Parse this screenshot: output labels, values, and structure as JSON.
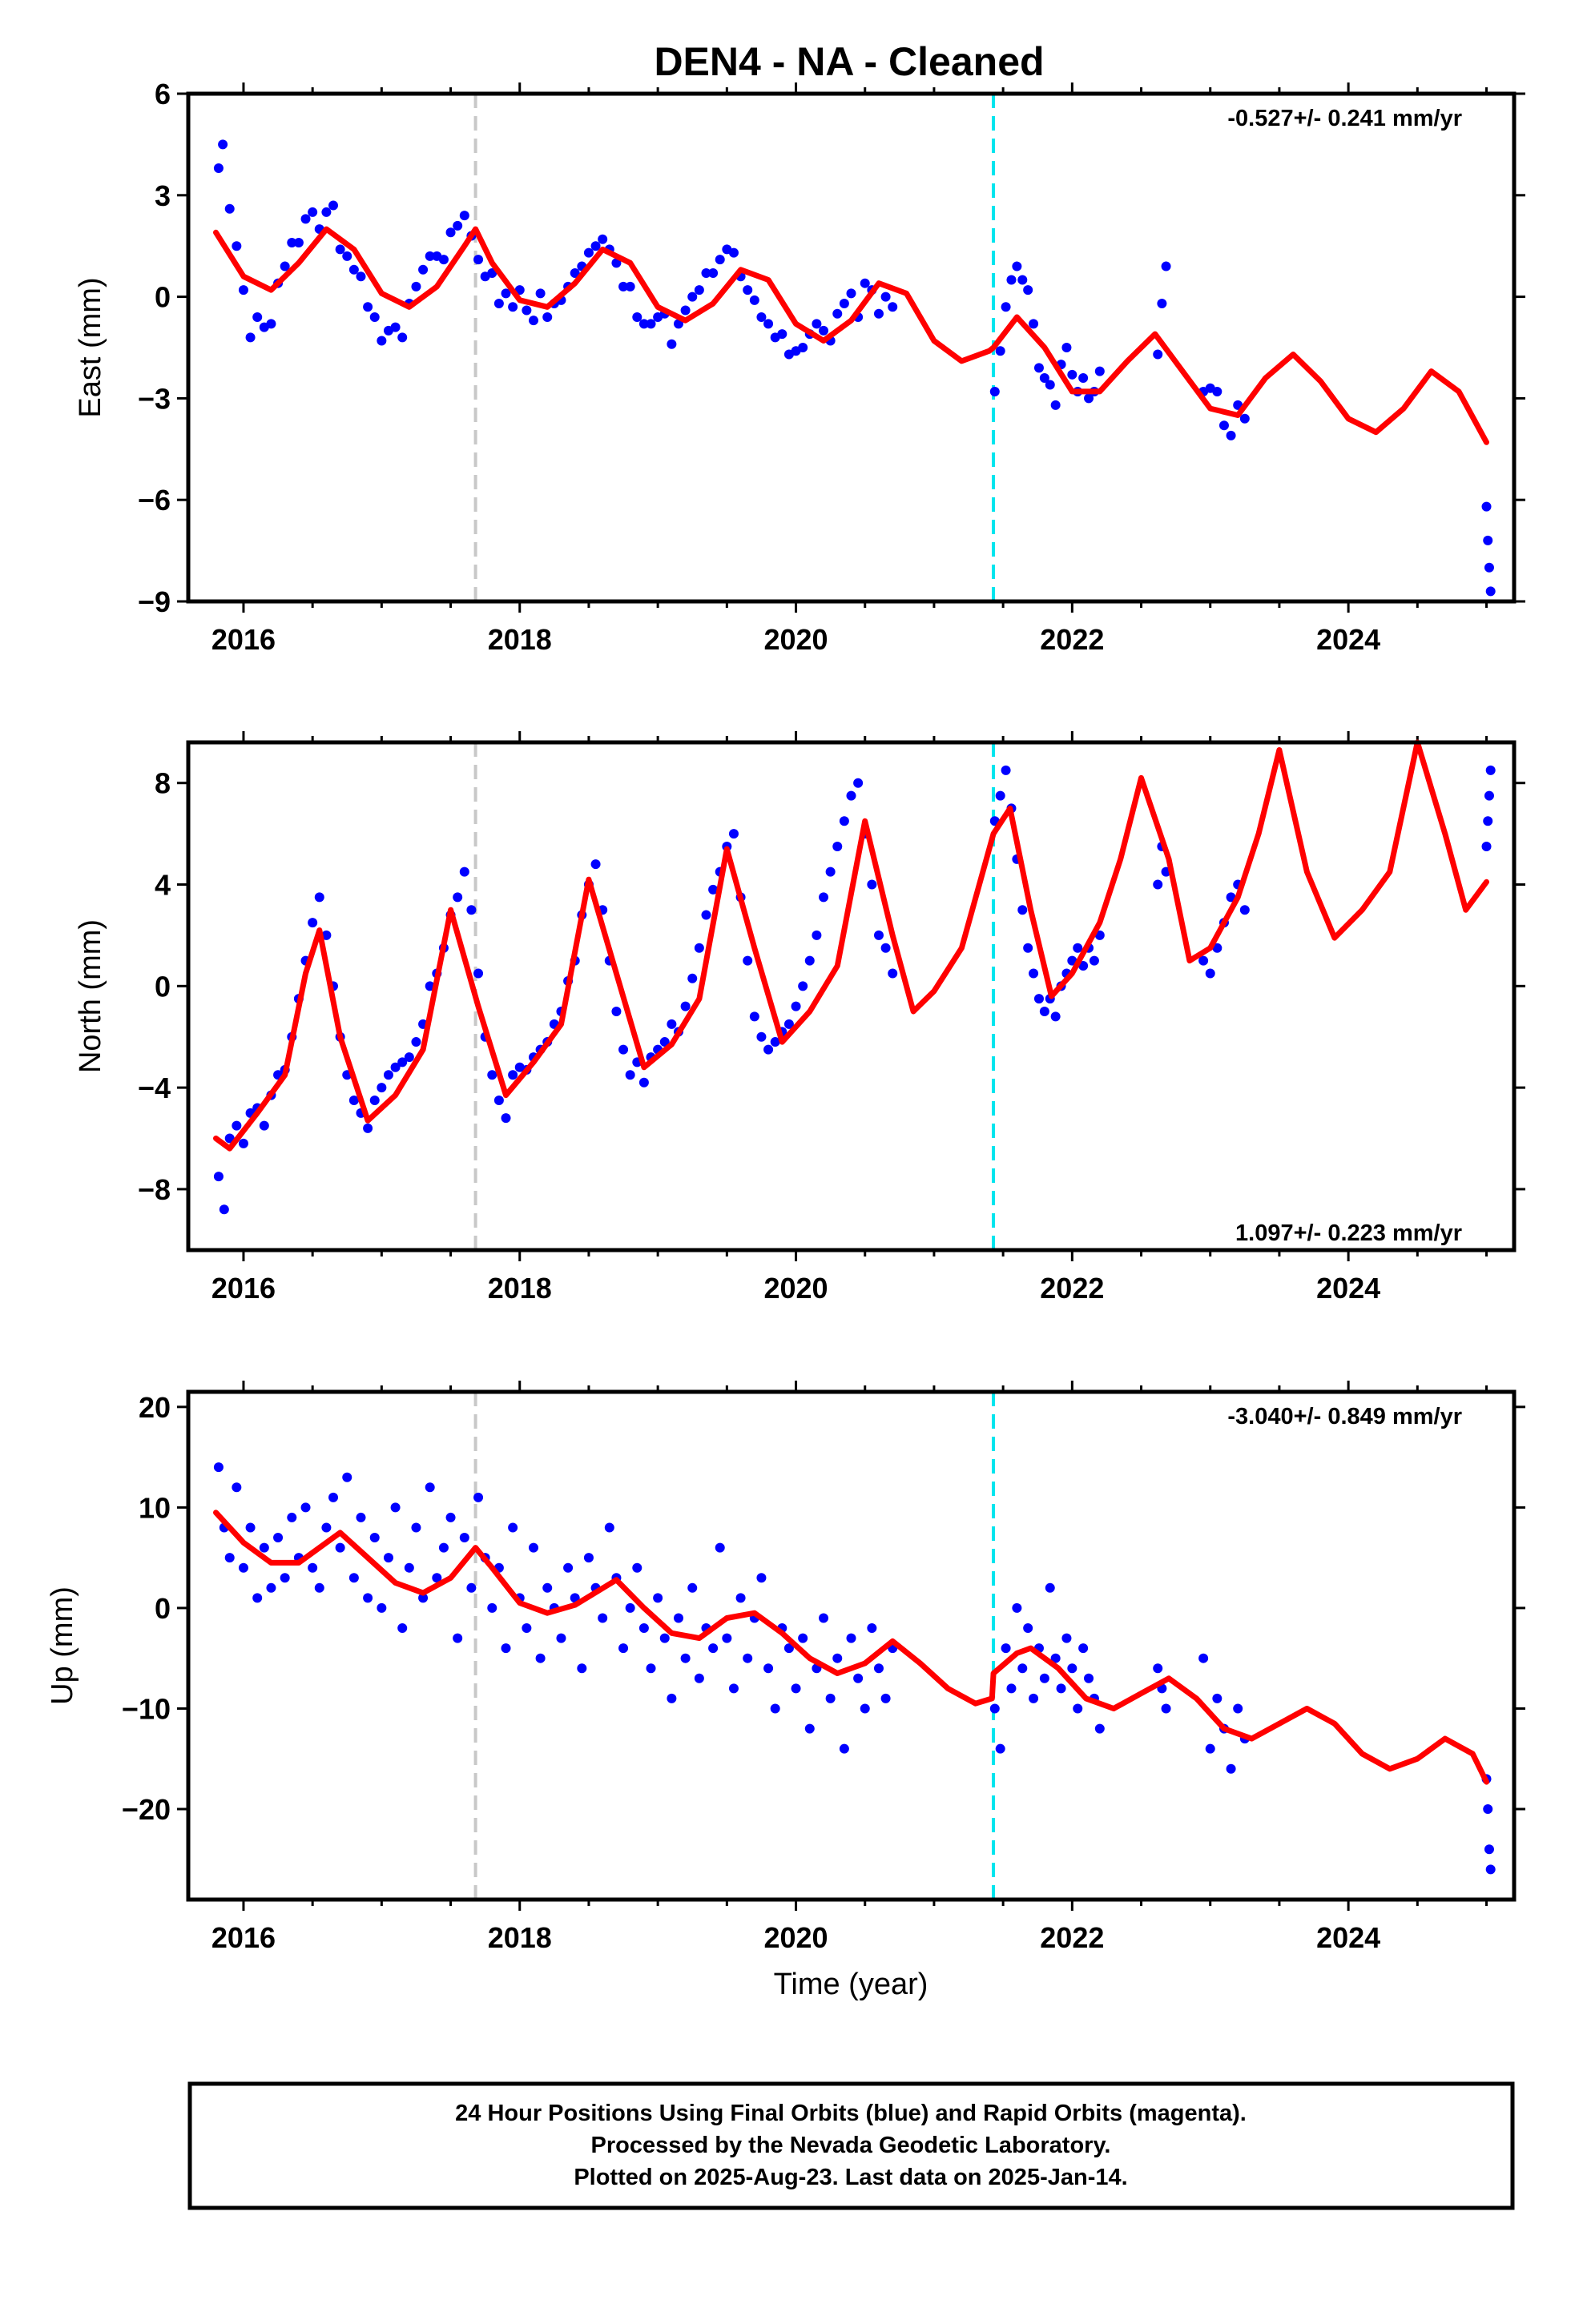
{
  "title": "DEN4  - NA - Cleaned",
  "xlabel": "Time (year)",
  "footer": {
    "lines": [
      "24 Hour Positions Using Final Orbits (blue) and Rapid Orbits (magenta).",
      "Processed by the Nevada Geodetic Laboratory.",
      "Plotted on 2025-Aug-23. Last data on 2025-Jan-14."
    ]
  },
  "colors": {
    "points": "#0000ff",
    "model": "#ff0000",
    "antenna_change": "#c8c8c8",
    "equipment_change": "#00e5ee"
  },
  "chart_data": [
    {
      "type": "scatter",
      "id": "east",
      "ylabel": "East (mm)",
      "rate_text": "-0.527+/- 0.241 mm/yr",
      "rate_position": "top-right",
      "xlim": [
        2015.6,
        2025.2
      ],
      "ylim": [
        -9,
        6
      ],
      "xticks": [
        2016,
        2018,
        2020,
        2022,
        2024
      ],
      "yticks": [
        -9,
        -6,
        -3,
        0,
        3,
        6
      ],
      "ytick_labels": [
        "−9",
        "−6",
        "−3",
        "0",
        "3",
        "6"
      ],
      "vertical_lines": [
        {
          "x": 2017.68,
          "color": "#c8c8c8"
        },
        {
          "x": 2021.43,
          "color": "#00e5ee"
        }
      ],
      "model_x": [
        2015.8,
        2016.0,
        2016.2,
        2016.4,
        2016.6,
        2016.8,
        2017.0,
        2017.2,
        2017.4,
        2017.6,
        2017.68,
        2017.8,
        2018.0,
        2018.2,
        2018.4,
        2018.6,
        2018.8,
        2019.0,
        2019.2,
        2019.4,
        2019.6,
        2019.8,
        2020.0,
        2020.2,
        2020.4,
        2020.6,
        2020.8,
        2021.0,
        2021.2,
        2021.4,
        2021.43,
        2021.6,
        2021.8,
        2022.0,
        2022.2,
        2022.4,
        2022.6,
        2022.8,
        2023.0,
        2023.2,
        2023.4,
        2023.6,
        2023.8,
        2024.0,
        2024.2,
        2024.4,
        2024.6,
        2024.8,
        2025.0
      ],
      "model_y": [
        1.9,
        0.6,
        0.2,
        1.0,
        2.0,
        1.4,
        0.1,
        -0.3,
        0.3,
        1.5,
        2.0,
        1.0,
        -0.1,
        -0.3,
        0.4,
        1.4,
        1.0,
        -0.3,
        -0.7,
        -0.2,
        0.8,
        0.5,
        -0.8,
        -1.3,
        -0.7,
        0.4,
        0.1,
        -1.3,
        -1.9,
        -1.6,
        -1.5,
        -0.6,
        -1.5,
        -2.8,
        -2.8,
        -1.9,
        -1.1,
        -2.2,
        -3.3,
        -3.5,
        -2.4,
        -1.7,
        -2.5,
        -3.6,
        -4.0,
        -3.3,
        -2.2,
        -2.8,
        -4.3
      ],
      "data_x": [
        2015.82,
        2015.85,
        2015.9,
        2015.95,
        2016.0,
        2016.05,
        2016.1,
        2016.15,
        2016.2,
        2016.25,
        2016.3,
        2016.35,
        2016.4,
        2016.45,
        2016.5,
        2016.55,
        2016.6,
        2016.65,
        2016.7,
        2016.75,
        2016.8,
        2016.85,
        2016.9,
        2016.95,
        2017.0,
        2017.05,
        2017.1,
        2017.15,
        2017.2,
        2017.25,
        2017.3,
        2017.35,
        2017.4,
        2017.45,
        2017.5,
        2017.55,
        2017.6,
        2017.65,
        2017.7,
        2017.75,
        2017.8,
        2017.85,
        2017.9,
        2017.95,
        2018.0,
        2018.05,
        2018.1,
        2018.15,
        2018.2,
        2018.25,
        2018.3,
        2018.35,
        2018.4,
        2018.45,
        2018.5,
        2018.55,
        2018.6,
        2018.65,
        2018.7,
        2018.75,
        2018.8,
        2018.85,
        2018.9,
        2018.95,
        2019.0,
        2019.05,
        2019.1,
        2019.15,
        2019.2,
        2019.25,
        2019.3,
        2019.35,
        2019.4,
        2019.45,
        2019.5,
        2019.55,
        2019.6,
        2019.65,
        2019.7,
        2019.75,
        2019.8,
        2019.85,
        2019.9,
        2019.95,
        2020.0,
        2020.05,
        2020.1,
        2020.15,
        2020.2,
        2020.25,
        2020.3,
        2020.35,
        2020.4,
        2020.45,
        2020.5,
        2020.55,
        2020.6,
        2020.65,
        2020.7,
        2021.44,
        2021.48,
        2021.52,
        2021.56,
        2021.6,
        2021.64,
        2021.68,
        2021.72,
        2021.76,
        2021.8,
        2021.84,
        2021.88,
        2021.92,
        2021.96,
        2022.0,
        2022.04,
        2022.08,
        2022.12,
        2022.16,
        2022.2,
        2022.62,
        2022.65,
        2022.68,
        2022.95,
        2023.0,
        2023.05,
        2023.1,
        2023.15,
        2023.2,
        2023.25,
        2025.0,
        2025.01,
        2025.02,
        2025.03
      ],
      "data_y": [
        3.8,
        4.5,
        2.6,
        1.5,
        0.2,
        -1.2,
        -0.6,
        -0.9,
        -0.8,
        0.4,
        0.9,
        1.6,
        1.6,
        2.3,
        2.5,
        2.0,
        2.5,
        2.7,
        1.4,
        1.2,
        0.8,
        0.6,
        -0.3,
        -0.6,
        -1.3,
        -1.0,
        -0.9,
        -1.2,
        -0.2,
        0.3,
        0.8,
        1.2,
        1.2,
        1.1,
        1.9,
        2.1,
        2.4,
        1.8,
        1.1,
        0.6,
        0.7,
        -0.2,
        0.1,
        -0.3,
        0.2,
        -0.4,
        -0.7,
        0.1,
        -0.6,
        -0.2,
        -0.1,
        0.3,
        0.7,
        0.9,
        1.3,
        1.5,
        1.7,
        1.4,
        1.0,
        0.3,
        0.3,
        -0.6,
        -0.8,
        -0.8,
        -0.6,
        -0.5,
        -1.4,
        -0.8,
        -0.4,
        0.0,
        0.2,
        0.7,
        0.7,
        1.1,
        1.4,
        1.3,
        0.6,
        0.2,
        -0.1,
        -0.6,
        -0.8,
        -1.2,
        -1.1,
        -1.7,
        -1.6,
        -1.5,
        -1.1,
        -0.8,
        -1.0,
        -1.3,
        -0.5,
        -0.2,
        0.1,
        -0.6,
        0.4,
        0.2,
        -0.5,
        0.0,
        -0.3,
        -2.8,
        -1.6,
        -0.3,
        0.5,
        0.9,
        0.5,
        0.2,
        -0.8,
        -2.1,
        -2.4,
        -2.6,
        -3.2,
        -2.0,
        -1.5,
        -2.3,
        -2.8,
        -2.4,
        -3.0,
        -2.8,
        -2.2,
        -1.7,
        -0.2,
        0.9,
        -2.8,
        -2.7,
        -2.8,
        -3.8,
        -4.1,
        -3.2,
        -3.6,
        -6.2,
        -7.2,
        -8.0,
        -8.7
      ]
    },
    {
      "type": "scatter",
      "id": "north",
      "ylabel": "North (mm)",
      "rate_text": "1.097+/- 0.223 mm/yr",
      "rate_position": "bottom-right",
      "xlim": [
        2015.6,
        2025.2
      ],
      "ylim": [
        -10.4,
        9.6
      ],
      "xticks": [
        2016,
        2018,
        2020,
        2022,
        2024
      ],
      "yticks": [
        -8,
        -4,
        0,
        4,
        8
      ],
      "ytick_labels": [
        "−8",
        "−4",
        "0",
        "4",
        "8"
      ],
      "vertical_lines": [
        {
          "x": 2017.68,
          "color": "#c8c8c8"
        },
        {
          "x": 2021.43,
          "color": "#00e5ee"
        }
      ],
      "model_x": [
        2015.8,
        2015.9,
        2016.1,
        2016.3,
        2016.45,
        2016.55,
        2016.7,
        2016.9,
        2017.1,
        2017.3,
        2017.5,
        2017.7,
        2017.9,
        2018.1,
        2018.3,
        2018.5,
        2018.7,
        2018.9,
        2019.1,
        2019.3,
        2019.5,
        2019.7,
        2019.9,
        2020.1,
        2020.3,
        2020.5,
        2020.7,
        2020.85,
        2021.0,
        2021.2,
        2021.43,
        2021.55,
        2021.7,
        2021.85,
        2022.0,
        2022.2,
        2022.35,
        2022.5,
        2022.7,
        2022.85,
        2023.0,
        2023.2,
        2023.35,
        2023.5,
        2023.7,
        2023.9,
        2024.1,
        2024.3,
        2024.5,
        2024.7,
        2024.85,
        2025.0
      ],
      "model_y": [
        -6.0,
        -6.4,
        -5.0,
        -3.5,
        0.5,
        2.2,
        -2.0,
        -5.3,
        -4.3,
        -2.5,
        3.0,
        -0.8,
        -4.3,
        -3.0,
        -1.5,
        4.2,
        0.5,
        -3.2,
        -2.3,
        -0.5,
        5.4,
        1.5,
        -2.2,
        -1.0,
        0.8,
        6.5,
        2.0,
        -1.0,
        -0.2,
        1.5,
        6.0,
        7.0,
        3.0,
        -0.4,
        0.5,
        2.5,
        5.0,
        8.2,
        5.0,
        1.0,
        1.5,
        3.5,
        6.0,
        9.3,
        4.5,
        1.9,
        3.0,
        4.5,
        9.6,
        6.0,
        3.0,
        4.1
      ],
      "data_x": [
        2015.82,
        2015.86,
        2015.9,
        2015.95,
        2016.0,
        2016.05,
        2016.1,
        2016.15,
        2016.2,
        2016.25,
        2016.3,
        2016.35,
        2016.4,
        2016.45,
        2016.5,
        2016.55,
        2016.6,
        2016.65,
        2016.7,
        2016.75,
        2016.8,
        2016.85,
        2016.9,
        2016.95,
        2017.0,
        2017.05,
        2017.1,
        2017.15,
        2017.2,
        2017.25,
        2017.3,
        2017.35,
        2017.4,
        2017.45,
        2017.5,
        2017.55,
        2017.6,
        2017.65,
        2017.7,
        2017.75,
        2017.8,
        2017.85,
        2017.9,
        2017.95,
        2018.0,
        2018.05,
        2018.1,
        2018.15,
        2018.2,
        2018.25,
        2018.3,
        2018.35,
        2018.4,
        2018.45,
        2018.5,
        2018.55,
        2018.6,
        2018.65,
        2018.7,
        2018.75,
        2018.8,
        2018.85,
        2018.9,
        2018.95,
        2019.0,
        2019.05,
        2019.1,
        2019.15,
        2019.2,
        2019.25,
        2019.3,
        2019.35,
        2019.4,
        2019.45,
        2019.5,
        2019.55,
        2019.6,
        2019.65,
        2019.7,
        2019.75,
        2019.8,
        2019.85,
        2019.9,
        2019.95,
        2020.0,
        2020.05,
        2020.1,
        2020.15,
        2020.2,
        2020.25,
        2020.3,
        2020.35,
        2020.4,
        2020.45,
        2020.5,
        2020.55,
        2020.6,
        2020.65,
        2020.7,
        2021.44,
        2021.48,
        2021.52,
        2021.56,
        2021.6,
        2021.64,
        2021.68,
        2021.72,
        2021.76,
        2021.8,
        2021.84,
        2021.88,
        2021.92,
        2021.96,
        2022.0,
        2022.04,
        2022.08,
        2022.12,
        2022.16,
        2022.2,
        2022.62,
        2022.65,
        2022.68,
        2022.95,
        2023.0,
        2023.05,
        2023.1,
        2023.15,
        2023.2,
        2023.25,
        2025.0,
        2025.01,
        2025.02,
        2025.03
      ],
      "data_y": [
        -7.5,
        -8.8,
        -6.0,
        -5.5,
        -6.2,
        -5.0,
        -4.8,
        -5.5,
        -4.3,
        -3.5,
        -3.3,
        -2.0,
        -0.5,
        1.0,
        2.5,
        3.5,
        2.0,
        0.0,
        -2.0,
        -3.5,
        -4.5,
        -5.0,
        -5.6,
        -4.5,
        -4.0,
        -3.5,
        -3.2,
        -3.0,
        -2.8,
        -2.2,
        -1.5,
        0.0,
        0.5,
        1.5,
        2.8,
        3.5,
        4.5,
        3.0,
        0.5,
        -2.0,
        -3.5,
        -4.5,
        -5.2,
        -3.5,
        -3.2,
        -3.3,
        -2.8,
        -2.5,
        -2.2,
        -1.5,
        -1.0,
        0.2,
        1.0,
        2.8,
        4.0,
        4.8,
        3.0,
        1.0,
        -1.0,
        -2.5,
        -3.5,
        -3.0,
        -3.8,
        -2.8,
        -2.5,
        -2.2,
        -1.5,
        -1.8,
        -0.8,
        0.3,
        1.5,
        2.8,
        3.8,
        4.5,
        5.5,
        6.0,
        3.5,
        1.0,
        -1.2,
        -2.0,
        -2.5,
        -2.2,
        -1.8,
        -1.5,
        -0.8,
        0.0,
        1.0,
        2.0,
        3.5,
        4.5,
        5.5,
        6.5,
        7.5,
        8.0,
        6.0,
        4.0,
        2.0,
        1.5,
        0.5,
        6.5,
        7.5,
        8.5,
        7.0,
        5.0,
        3.0,
        1.5,
        0.5,
        -0.5,
        -1.0,
        -0.5,
        -1.2,
        0.0,
        0.5,
        1.0,
        1.5,
        0.8,
        1.5,
        1.0,
        2.0,
        4.0,
        5.5,
        4.5,
        1.0,
        0.5,
        1.5,
        2.5,
        3.5,
        4.0,
        3.0,
        5.5,
        6.5,
        7.5,
        8.5
      ]
    },
    {
      "type": "scatter",
      "id": "up",
      "ylabel": "Up (mm)",
      "rate_text": "-3.040+/- 0.849 mm/yr",
      "rate_position": "top-right",
      "xlim": [
        2015.6,
        2025.2
      ],
      "ylim": [
        -29,
        21.5
      ],
      "xticks": [
        2016,
        2018,
        2020,
        2022,
        2024
      ],
      "yticks": [
        -20,
        -10,
        0,
        10,
        20
      ],
      "ytick_labels": [
        "−20",
        "−10",
        "0",
        "10",
        "20"
      ],
      "vertical_lines": [
        {
          "x": 2017.68,
          "color": "#c8c8c8"
        },
        {
          "x": 2021.43,
          "color": "#00e5ee"
        }
      ],
      "model_x": [
        2015.8,
        2016.0,
        2016.2,
        2016.4,
        2016.7,
        2016.9,
        2017.1,
        2017.3,
        2017.5,
        2017.68,
        2017.8,
        2018.0,
        2018.2,
        2018.4,
        2018.7,
        2018.9,
        2019.1,
        2019.3,
        2019.5,
        2019.7,
        2019.9,
        2020.1,
        2020.3,
        2020.5,
        2020.7,
        2020.9,
        2021.1,
        2021.3,
        2021.42,
        2021.43,
        2021.6,
        2021.7,
        2021.9,
        2022.1,
        2022.3,
        2022.5,
        2022.7,
        2022.9,
        2023.1,
        2023.3,
        2023.5,
        2023.7,
        2023.9,
        2024.1,
        2024.3,
        2024.5,
        2024.7,
        2024.9,
        2025.0
      ],
      "model_y": [
        9.5,
        6.5,
        4.5,
        4.5,
        7.5,
        5.0,
        2.5,
        1.5,
        3.0,
        6.0,
        4.0,
        0.5,
        -0.5,
        0.3,
        2.8,
        0.0,
        -2.5,
        -3.0,
        -1.0,
        -0.5,
        -2.5,
        -5.0,
        -6.5,
        -5.5,
        -3.3,
        -5.5,
        -8.0,
        -9.5,
        -9.0,
        -6.5,
        -4.5,
        -4.0,
        -6.0,
        -9.0,
        -10.0,
        -8.5,
        -7.0,
        -9.0,
        -12.0,
        -13.0,
        -11.5,
        -10.0,
        -11.5,
        -14.5,
        -16.0,
        -15.0,
        -13.0,
        -14.5,
        -17.3
      ],
      "data_x": [
        2015.82,
        2015.86,
        2015.9,
        2015.95,
        2016.0,
        2016.05,
        2016.1,
        2016.15,
        2016.2,
        2016.25,
        2016.3,
        2016.35,
        2016.4,
        2016.45,
        2016.5,
        2016.55,
        2016.6,
        2016.65,
        2016.7,
        2016.75,
        2016.8,
        2016.85,
        2016.9,
        2016.95,
        2017.0,
        2017.05,
        2017.1,
        2017.15,
        2017.2,
        2017.25,
        2017.3,
        2017.35,
        2017.4,
        2017.45,
        2017.5,
        2017.55,
        2017.6,
        2017.65,
        2017.7,
        2017.75,
        2017.8,
        2017.85,
        2017.9,
        2017.95,
        2018.0,
        2018.05,
        2018.1,
        2018.15,
        2018.2,
        2018.25,
        2018.3,
        2018.35,
        2018.4,
        2018.45,
        2018.5,
        2018.55,
        2018.6,
        2018.65,
        2018.7,
        2018.75,
        2018.8,
        2018.85,
        2018.9,
        2018.95,
        2019.0,
        2019.05,
        2019.1,
        2019.15,
        2019.2,
        2019.25,
        2019.3,
        2019.35,
        2019.4,
        2019.45,
        2019.5,
        2019.55,
        2019.6,
        2019.65,
        2019.7,
        2019.75,
        2019.8,
        2019.85,
        2019.9,
        2019.95,
        2020.0,
        2020.05,
        2020.1,
        2020.15,
        2020.2,
        2020.25,
        2020.3,
        2020.35,
        2020.4,
        2020.45,
        2020.5,
        2020.55,
        2020.6,
        2020.65,
        2020.7,
        2021.44,
        2021.48,
        2021.52,
        2021.56,
        2021.6,
        2021.64,
        2021.68,
        2021.72,
        2021.76,
        2021.8,
        2021.84,
        2021.88,
        2021.92,
        2021.96,
        2022.0,
        2022.04,
        2022.08,
        2022.12,
        2022.16,
        2022.2,
        2022.62,
        2022.65,
        2022.68,
        2022.95,
        2023.0,
        2023.05,
        2023.1,
        2023.15,
        2023.2,
        2023.25,
        2025.0,
        2025.01,
        2025.02,
        2025.03
      ],
      "data_y": [
        14.0,
        8.0,
        5.0,
        12.0,
        4.0,
        8.0,
        1.0,
        6.0,
        2.0,
        7.0,
        3.0,
        9.0,
        5.0,
        10.0,
        4.0,
        2.0,
        8.0,
        11.0,
        6.0,
        13.0,
        3.0,
        9.0,
        1.0,
        7.0,
        0.0,
        5.0,
        10.0,
        -2.0,
        4.0,
        8.0,
        1.0,
        12.0,
        3.0,
        6.0,
        9.0,
        -3.0,
        7.0,
        2.0,
        11.0,
        5.0,
        0.0,
        4.0,
        -4.0,
        8.0,
        1.0,
        -2.0,
        6.0,
        -5.0,
        2.0,
        0.0,
        -3.0,
        4.0,
        1.0,
        -6.0,
        5.0,
        2.0,
        -1.0,
        8.0,
        3.0,
        -4.0,
        0.0,
        4.0,
        -2.0,
        -6.0,
        1.0,
        -3.0,
        -9.0,
        -1.0,
        -5.0,
        2.0,
        -7.0,
        -2.0,
        -4.0,
        6.0,
        -3.0,
        -8.0,
        1.0,
        -5.0,
        -1.0,
        3.0,
        -6.0,
        -10.0,
        -2.0,
        -4.0,
        -8.0,
        -3.0,
        -12.0,
        -6.0,
        -1.0,
        -9.0,
        -5.0,
        -14.0,
        -3.0,
        -7.0,
        -10.0,
        -2.0,
        -6.0,
        -9.0,
        -4.0,
        -10.0,
        -14.0,
        -4.0,
        -8.0,
        0.0,
        -6.0,
        -2.0,
        -9.0,
        -4.0,
        -7.0,
        2.0,
        -5.0,
        -8.0,
        -3.0,
        -6.0,
        -10.0,
        -4.0,
        -7.0,
        -9.0,
        -12.0,
        -6.0,
        -8.0,
        -10.0,
        -5.0,
        -14.0,
        -9.0,
        -12.0,
        -16.0,
        -10.0,
        -13.0,
        -17.0,
        -20.0,
        -24.0,
        -26.0
      ]
    }
  ]
}
